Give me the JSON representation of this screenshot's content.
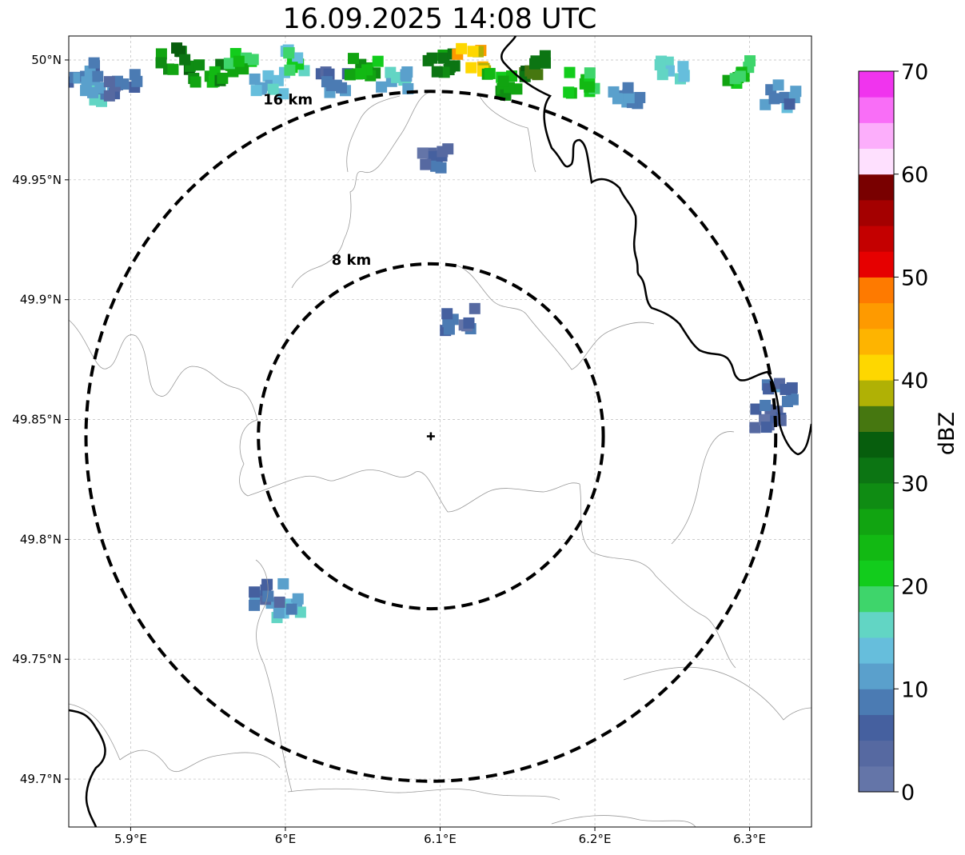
{
  "title": "16.09.2025 14:08 UTC",
  "map": {
    "lon_range": [
      5.86,
      6.34
    ],
    "lat_range": [
      49.68,
      50.01
    ],
    "lon_ticks": [
      {
        "value": 5.9,
        "label": "5.9°E"
      },
      {
        "value": 6.0,
        "label": "6°E"
      },
      {
        "value": 6.1,
        "label": "6.1°E"
      },
      {
        "value": 6.2,
        "label": "6.2°E"
      },
      {
        "value": 6.3,
        "label": "6.3°E"
      }
    ],
    "lat_ticks": [
      {
        "value": 50.0,
        "label": "50°N"
      },
      {
        "value": 49.95,
        "label": "49.95°N"
      },
      {
        "value": 49.9,
        "label": "49.9°N"
      },
      {
        "value": 49.85,
        "label": "49.85°N"
      },
      {
        "value": 49.8,
        "label": "49.8°N"
      },
      {
        "value": 49.75,
        "label": "49.75°N"
      },
      {
        "value": 49.7,
        "label": "49.7°N"
      }
    ],
    "gridlines": true,
    "center": {
      "lon": 6.094,
      "lat": 49.843
    },
    "rings": [
      {
        "radius_km": 8,
        "label": "8 km"
      },
      {
        "radius_km": 16,
        "label": "16 km"
      }
    ],
    "echoes": [
      {
        "lon": 5.87,
        "lat": 49.995,
        "dbz": 8
      },
      {
        "lon": 5.88,
        "lat": 49.985,
        "dbz": 12
      },
      {
        "lon": 5.895,
        "lat": 49.99,
        "dbz": 6
      },
      {
        "lon": 5.93,
        "lat": 50.0,
        "dbz": 30
      },
      {
        "lon": 5.95,
        "lat": 49.995,
        "dbz": 28
      },
      {
        "lon": 5.97,
        "lat": 50.0,
        "dbz": 22
      },
      {
        "lon": 5.99,
        "lat": 49.99,
        "dbz": 12
      },
      {
        "lon": 6.01,
        "lat": 50.0,
        "dbz": 18
      },
      {
        "lon": 6.03,
        "lat": 49.99,
        "dbz": 8
      },
      {
        "lon": 6.05,
        "lat": 49.998,
        "dbz": 24
      },
      {
        "lon": 6.07,
        "lat": 49.99,
        "dbz": 14
      },
      {
        "lon": 6.1,
        "lat": 49.998,
        "dbz": 30
      },
      {
        "lon": 6.12,
        "lat": 50.0,
        "dbz": 42
      },
      {
        "lon": 6.14,
        "lat": 49.99,
        "dbz": 26
      },
      {
        "lon": 6.165,
        "lat": 49.998,
        "dbz": 34
      },
      {
        "lon": 6.19,
        "lat": 49.99,
        "dbz": 20
      },
      {
        "lon": 6.22,
        "lat": 49.985,
        "dbz": 10
      },
      {
        "lon": 6.25,
        "lat": 49.995,
        "dbz": 16
      },
      {
        "lon": 6.29,
        "lat": 49.995,
        "dbz": 22
      },
      {
        "lon": 6.32,
        "lat": 49.985,
        "dbz": 10
      },
      {
        "lon": 6.098,
        "lat": 49.959,
        "dbz": 6
      },
      {
        "lon": 6.113,
        "lat": 49.892,
        "dbz": 6
      },
      {
        "lon": 6.31,
        "lat": 49.85,
        "dbz": 6
      },
      {
        "lon": 6.32,
        "lat": 49.86,
        "dbz": 8
      },
      {
        "lon": 6.0,
        "lat": 49.772,
        "dbz": 12
      },
      {
        "lon": 5.99,
        "lat": 49.777,
        "dbz": 8
      }
    ]
  },
  "colorbar": {
    "label": "dBZ",
    "min": 0,
    "max": 70,
    "step": 2.5,
    "tick_labels": [
      "0",
      "10",
      "20",
      "30",
      "40",
      "50",
      "60",
      "70"
    ],
    "colors": [
      "#6475a8",
      "#5669a1",
      "#45609f",
      "#4b7bb3",
      "#5aa0cc",
      "#66bedc",
      "#62d5c4",
      "#3ed56b",
      "#12cc1c",
      "#12b913",
      "#11a411",
      "#0f8c13",
      "#0c7513",
      "#075e0d",
      "#467710",
      "#b0b105",
      "#fed700",
      "#feb400",
      "#fe9a00",
      "#fe7a00",
      "#e60000",
      "#c40000",
      "#a40000",
      "#790000",
      "#fee0fe",
      "#fcaefb",
      "#f96ef7",
      "#f034ee"
    ]
  }
}
